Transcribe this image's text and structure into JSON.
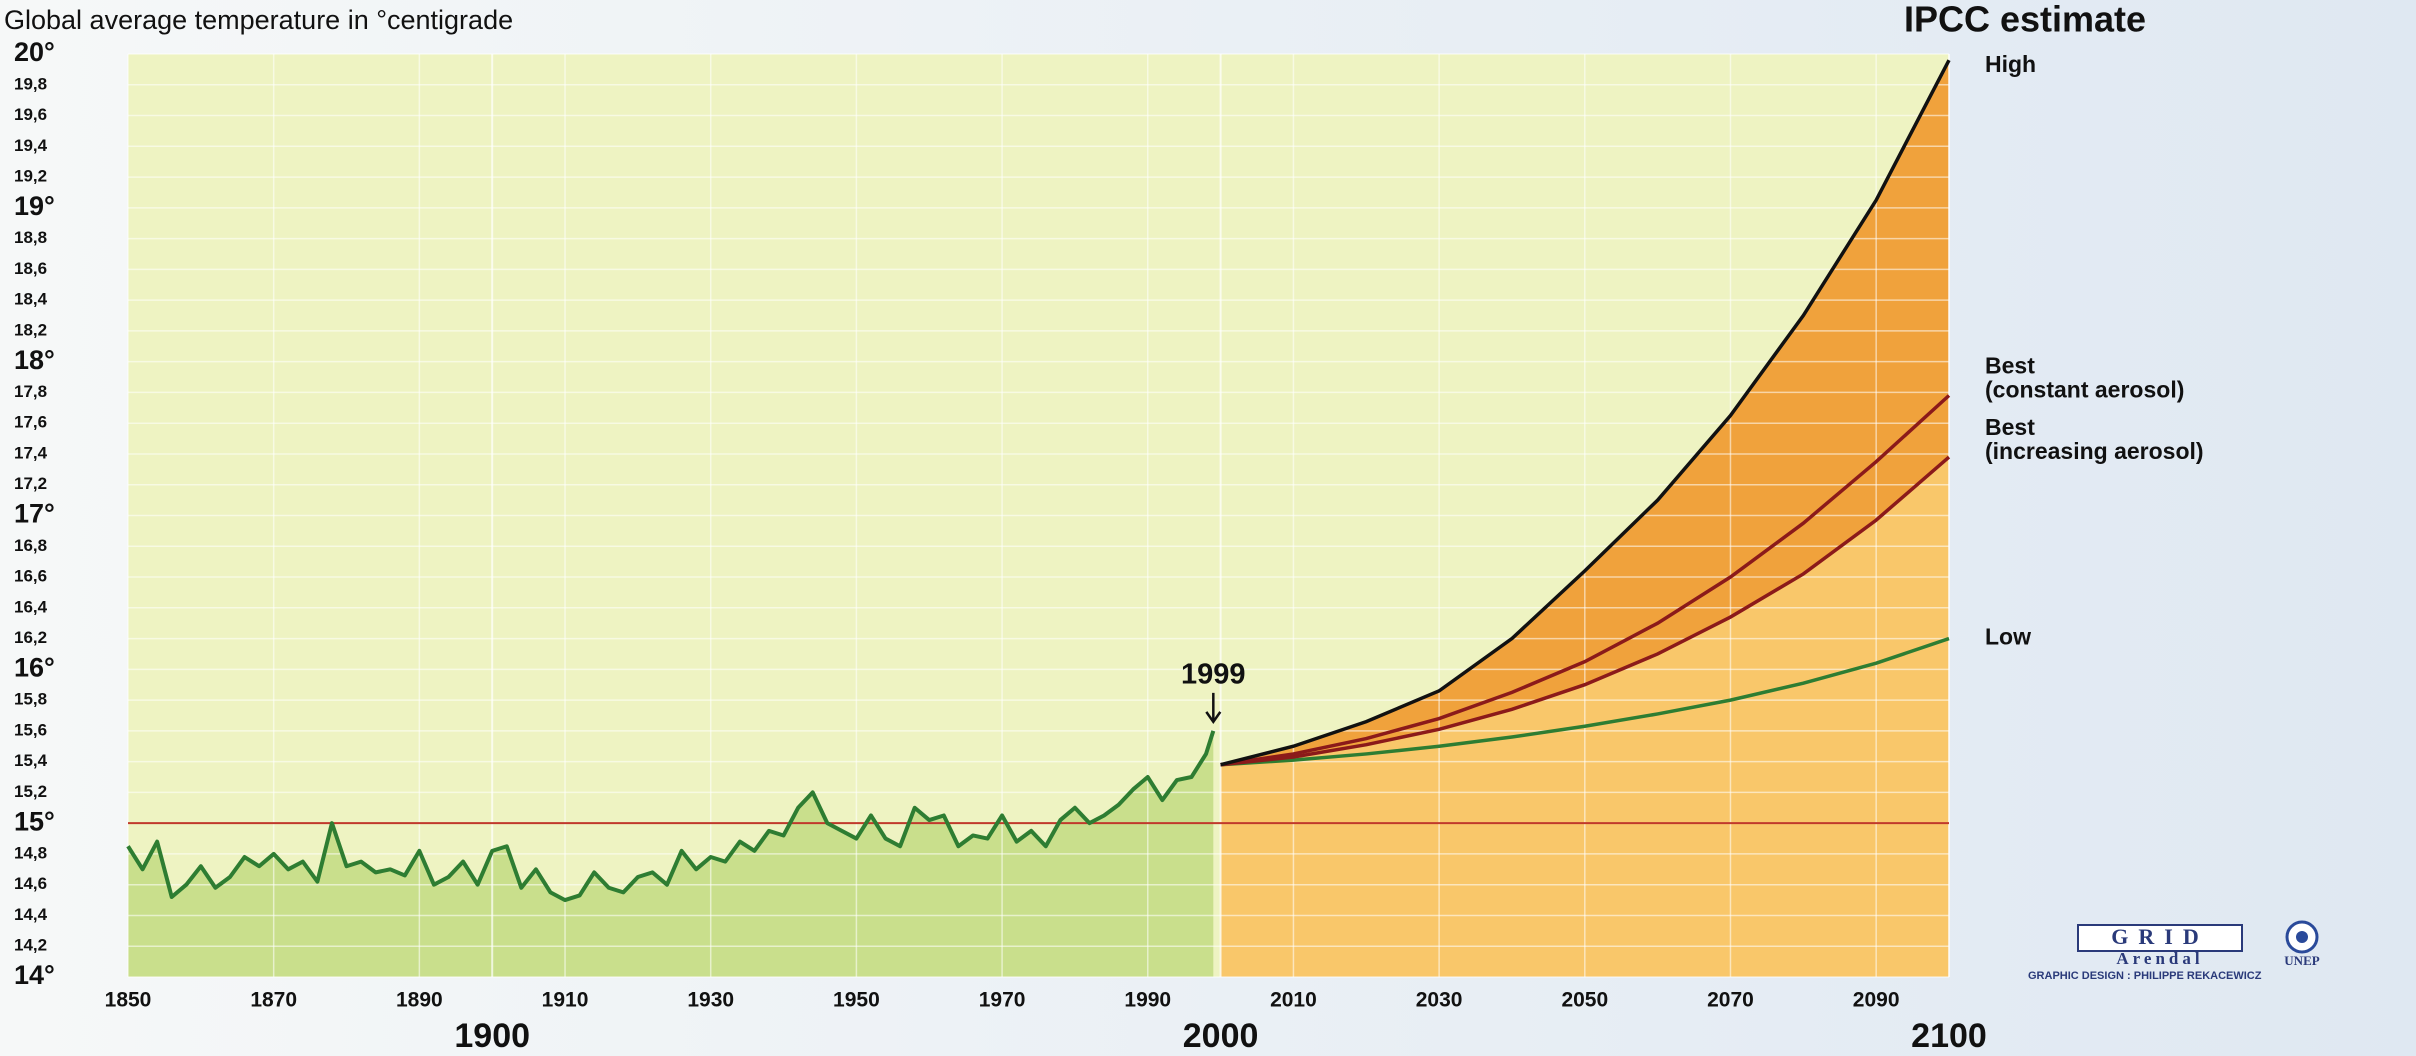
{
  "chart_data": {
    "type": "line",
    "title": "Global average temperature in °centigrade",
    "projection_title": "IPCC estimate",
    "xlim": [
      1850,
      2100
    ],
    "ylim": [
      14,
      20
    ],
    "xticks": [
      1850,
      1870,
      1890,
      1910,
      1930,
      1950,
      1970,
      1990,
      2010,
      2030,
      2050,
      2070,
      2090
    ],
    "century_ticks": [
      1900,
      2000,
      2100
    ],
    "yticks": [
      {
        "value": 14,
        "label": "14°"
      },
      {
        "value": 14.2,
        "label": "14,2"
      },
      {
        "value": 14.4,
        "label": "14,4"
      },
      {
        "value": 14.6,
        "label": "14,6"
      },
      {
        "value": 14.8,
        "label": "14,8"
      },
      {
        "value": 15,
        "label": "15°"
      },
      {
        "value": 15.2,
        "label": "15,2"
      },
      {
        "value": 15.4,
        "label": "15,4"
      },
      {
        "value": 15.6,
        "label": "15,6"
      },
      {
        "value": 15.8,
        "label": "15,8"
      },
      {
        "value": 16,
        "label": "16°"
      },
      {
        "value": 16.2,
        "label": "16,2"
      },
      {
        "value": 16.4,
        "label": "16,4"
      },
      {
        "value": 16.6,
        "label": "16,6"
      },
      {
        "value": 16.8,
        "label": "16,8"
      },
      {
        "value": 17,
        "label": "17°"
      },
      {
        "value": 17.2,
        "label": "17,2"
      },
      {
        "value": 17.4,
        "label": "17,4"
      },
      {
        "value": 17.6,
        "label": "17,6"
      },
      {
        "value": 17.8,
        "label": "17,8"
      },
      {
        "value": 18,
        "label": "18°"
      },
      {
        "value": 18.2,
        "label": "18,2"
      },
      {
        "value": 18.4,
        "label": "18,4"
      },
      {
        "value": 18.6,
        "label": "18,6"
      },
      {
        "value": 18.8,
        "label": "18,8"
      },
      {
        "value": 19,
        "label": "19°"
      },
      {
        "value": 19.2,
        "label": "19,2"
      },
      {
        "value": 19.4,
        "label": "19,4"
      },
      {
        "value": 19.6,
        "label": "19,6"
      },
      {
        "value": 19.8,
        "label": "19,8"
      },
      {
        "value": 20,
        "label": "20°"
      }
    ],
    "grid": true,
    "reference_line": {
      "value": 15,
      "color": "#c0392b"
    },
    "annotation": {
      "text": "1999",
      "x": 1999,
      "y": 15.6
    },
    "fills": {
      "plot": "#eef3c2",
      "history": "#c9df8c",
      "projection_low": "#f9c76a",
      "projection_high": "#f0a23c"
    },
    "history": {
      "color": "#2e7d32",
      "x": [
        1850,
        1852,
        1854,
        1856,
        1858,
        1860,
        1862,
        1864,
        1866,
        1868,
        1870,
        1872,
        1874,
        1876,
        1878,
        1880,
        1882,
        1884,
        1886,
        1888,
        1890,
        1892,
        1894,
        1896,
        1898,
        1900,
        1902,
        1904,
        1906,
        1908,
        1910,
        1912,
        1914,
        1916,
        1918,
        1920,
        1922,
        1924,
        1926,
        1928,
        1930,
        1932,
        1934,
        1936,
        1938,
        1940,
        1942,
        1944,
        1946,
        1948,
        1950,
        1952,
        1954,
        1956,
        1958,
        1960,
        1962,
        1964,
        1966,
        1968,
        1970,
        1972,
        1974,
        1976,
        1978,
        1980,
        1982,
        1984,
        1986,
        1988,
        1990,
        1992,
        1994,
        1996,
        1998,
        1999
      ],
      "values": [
        14.85,
        14.7,
        14.88,
        14.52,
        14.6,
        14.72,
        14.58,
        14.65,
        14.78,
        14.72,
        14.8,
        14.7,
        14.75,
        14.62,
        15.0,
        14.72,
        14.75,
        14.68,
        14.7,
        14.66,
        14.82,
        14.6,
        14.65,
        14.75,
        14.6,
        14.82,
        14.85,
        14.58,
        14.7,
        14.55,
        14.5,
        14.53,
        14.68,
        14.58,
        14.55,
        14.65,
        14.68,
        14.6,
        14.82,
        14.7,
        14.78,
        14.75,
        14.88,
        14.82,
        14.95,
        14.92,
        15.1,
        15.2,
        15.0,
        14.95,
        14.9,
        15.05,
        14.9,
        14.85,
        15.1,
        15.02,
        15.05,
        14.85,
        14.92,
        14.9,
        15.05,
        14.88,
        14.95,
        14.85,
        15.02,
        15.1,
        15.0,
        15.05,
        15.12,
        15.22,
        15.3,
        15.15,
        15.28,
        15.3,
        15.45,
        15.6
      ]
    },
    "series": [
      {
        "name": "High",
        "color": "#111111",
        "x": [
          2000,
          2010,
          2020,
          2030,
          2040,
          2050,
          2060,
          2070,
          2080,
          2090,
          2100
        ],
        "values": [
          15.38,
          15.5,
          15.66,
          15.86,
          16.2,
          16.64,
          17.1,
          17.65,
          18.3,
          19.05,
          19.96
        ]
      },
      {
        "name": "Best",
        "note": "(constant aerosol)",
        "color": "#8b1a1a",
        "x": [
          2000,
          2010,
          2020,
          2030,
          2040,
          2050,
          2060,
          2070,
          2080,
          2090,
          2100
        ],
        "values": [
          15.38,
          15.45,
          15.55,
          15.68,
          15.85,
          16.05,
          16.3,
          16.6,
          16.95,
          17.35,
          17.78
        ]
      },
      {
        "name": "Best",
        "note": "(increasing aerosol)",
        "color": "#8b1a1a",
        "x": [
          2000,
          2010,
          2020,
          2030,
          2040,
          2050,
          2060,
          2070,
          2080,
          2090,
          2100
        ],
        "values": [
          15.38,
          15.43,
          15.51,
          15.61,
          15.74,
          15.9,
          16.1,
          16.34,
          16.62,
          16.97,
          17.38
        ]
      },
      {
        "name": "Low",
        "color": "#2e7d32",
        "x": [
          2000,
          2010,
          2020,
          2030,
          2040,
          2050,
          2060,
          2070,
          2080,
          2090,
          2100
        ],
        "values": [
          15.38,
          15.41,
          15.45,
          15.5,
          15.56,
          15.63,
          15.71,
          15.8,
          15.91,
          16.04,
          16.2
        ]
      }
    ],
    "credits": {
      "logo": "GRID",
      "city": "Arendal",
      "org": "UNEP",
      "design": "GRAPHIC DESIGN : PHILIPPE REKACEWICZ"
    }
  }
}
